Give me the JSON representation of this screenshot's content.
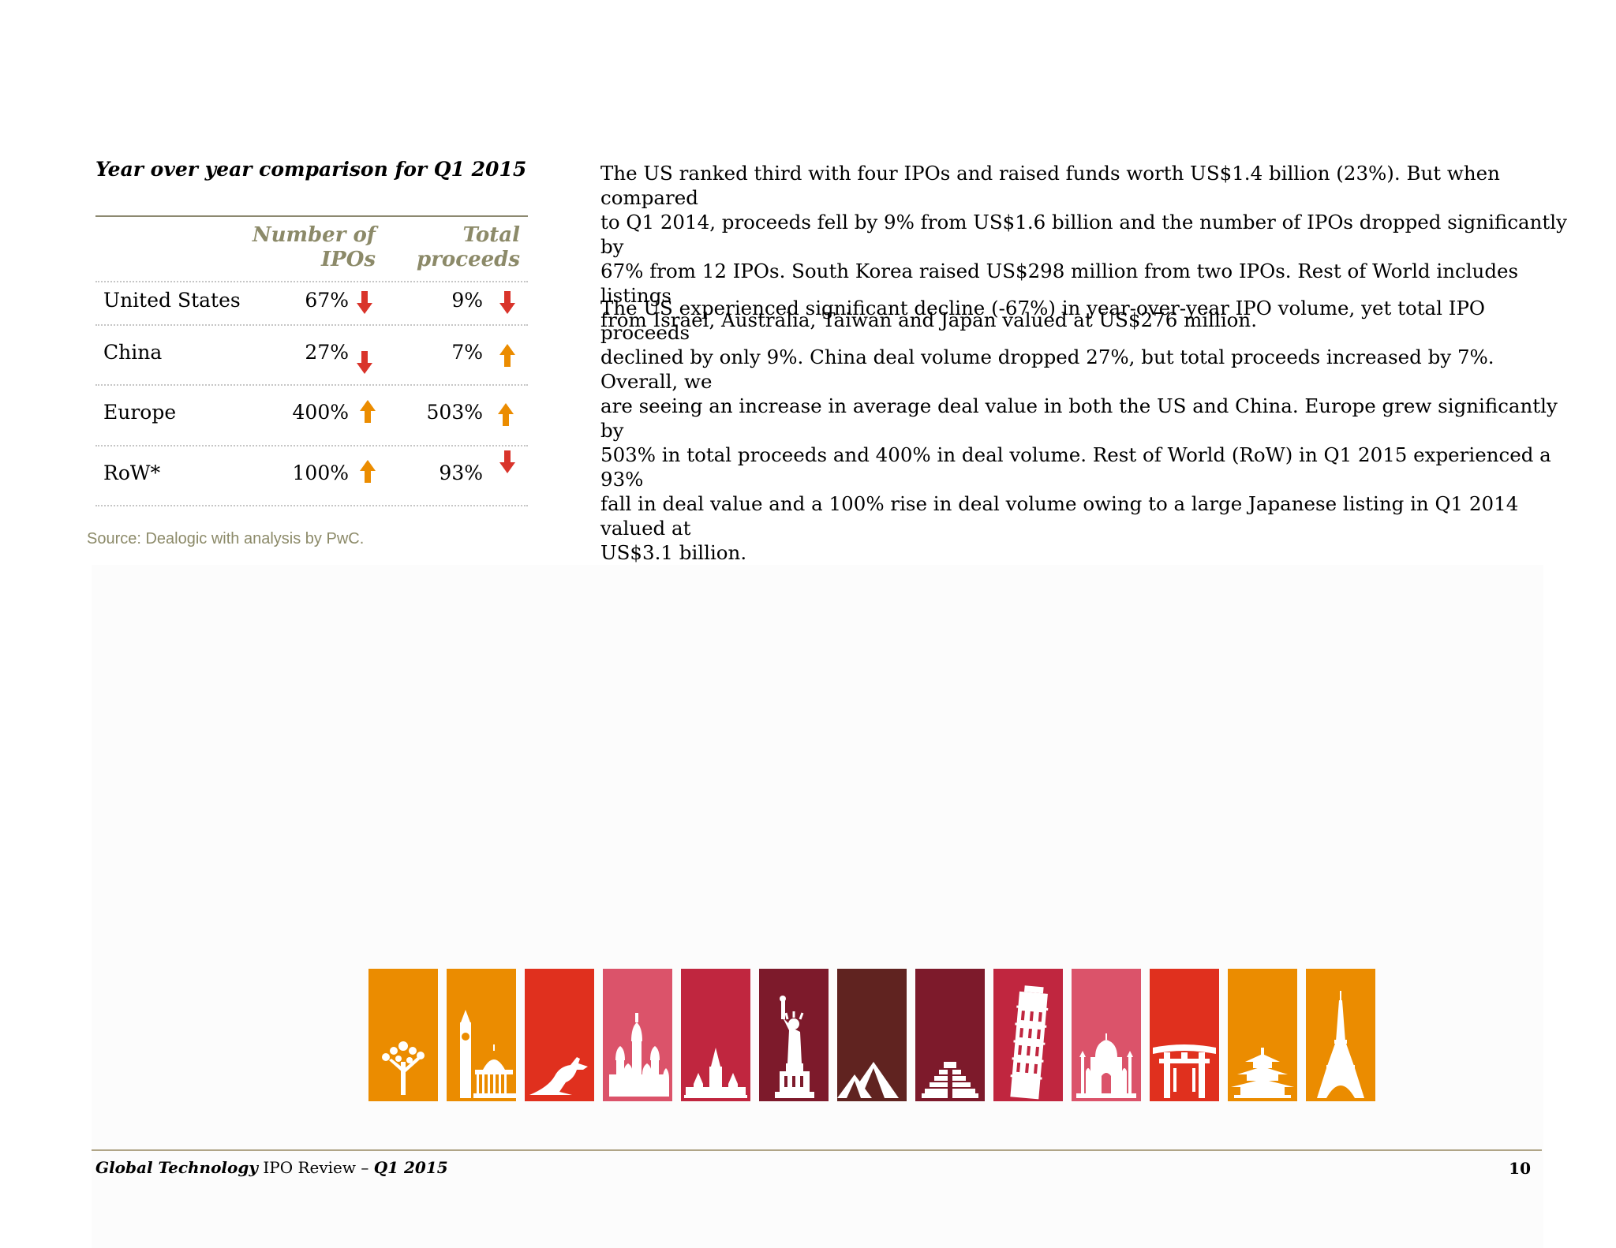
{
  "table": {
    "title": "Year over year comparison for Q1 2015",
    "col_headers": {
      "ipos_line1": "Number of",
      "ipos_line2": "IPOs",
      "proceeds_line1": "Total",
      "proceeds_line2": "proceeds"
    },
    "rows": [
      {
        "region": "United States",
        "ipos": "67%",
        "ipos_trend": "down",
        "proceeds": "9%",
        "proceeds_trend": "down"
      },
      {
        "region": "China",
        "ipos": "27%",
        "ipos_trend": "down",
        "proceeds": "7%",
        "proceeds_trend": "up"
      },
      {
        "region": "Europe",
        "ipos": "400%",
        "ipos_trend": "up",
        "proceeds": "503%",
        "proceeds_trend": "up"
      },
      {
        "region": "RoW*",
        "ipos": "100%",
        "ipos_trend": "up",
        "proceeds": "93%",
        "proceeds_trend": "down"
      }
    ],
    "source": "Source: Dealogic with analysis by PwC."
  },
  "body": {
    "paragraph1": [
      "The US ranked third with four IPOs and raised funds worth US$1.4 billion (23%). But when compared",
      "to Q1 2014, proceeds fell by 9% from US$1.6 billion and the number of IPOs dropped significantly by",
      "67% from 12 IPOs. South Korea raised US$298 million from two IPOs. Rest of World includes listings",
      "from Israel, Australia, Taiwan and Japan valued at US$276 million."
    ],
    "paragraph2": [
      "The US experienced significant decline (-67%) in year-over-year IPO volume, yet total IPO proceeds",
      "declined by only 9%. China deal volume dropped 27%, but total proceeds increased by 7%. Overall, we",
      "are seeing an increase in average deal value in both the US and China. Europe grew significantly by",
      "503% in total proceeds and 400% in deal volume. Rest of World (RoW) in Q1 2015 experienced a 93%",
      "fall in deal value and a 100% rise in deal volume owing to a large Japanese listing in Q1 2014 valued at",
      "US$3.1 billion."
    ]
  },
  "colors": {
    "arrow_down": "#d9342b",
    "arrow_up": "#eb8c00",
    "header_text": "#8c8a69"
  },
  "landmark_tiles": [
    {
      "icon": "tree-icon",
      "color": "#eb8c00"
    },
    {
      "icon": "big-ben-capitol-icon",
      "color": "#eb8c00"
    },
    {
      "icon": "kangaroo-icon",
      "color": "#e0301e"
    },
    {
      "icon": "st-basils-cathedral-icon",
      "color": "#db536a"
    },
    {
      "icon": "temple-icon",
      "color": "#c0263f"
    },
    {
      "icon": "statue-of-liberty-icon",
      "color": "#7d1a2b"
    },
    {
      "icon": "pyramids-icon",
      "color": "#602320"
    },
    {
      "icon": "mayan-pyramid-icon",
      "color": "#7d1a2b"
    },
    {
      "icon": "leaning-tower-of-pisa-icon",
      "color": "#c0263f"
    },
    {
      "icon": "taj-mahal-icon",
      "color": "#db536a"
    },
    {
      "icon": "torii-gate-icon",
      "color": "#e0301e"
    },
    {
      "icon": "pagoda-icon",
      "color": "#eb8c00"
    },
    {
      "icon": "eiffel-tower-icon",
      "color": "#eb8c00"
    }
  ],
  "footer": {
    "title_bold": "Global Technology",
    "title_mid": " IPO Review – ",
    "title_period": "Q1 2015",
    "page_number": "10"
  }
}
